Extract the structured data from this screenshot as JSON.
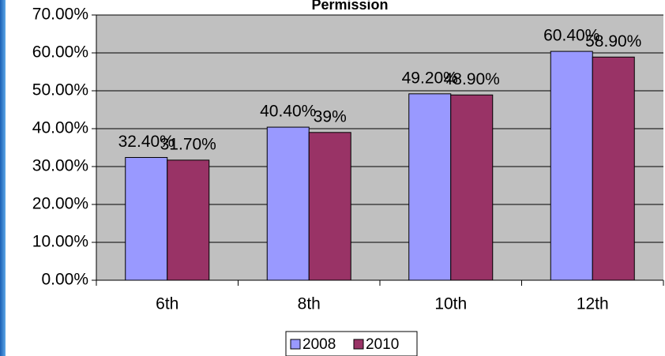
{
  "chart_data": {
    "type": "bar",
    "title": "Permission",
    "categories": [
      "6th",
      "8th",
      "10th",
      "12th"
    ],
    "series": [
      {
        "name": "2008",
        "color": "#9999ff",
        "values": [
          32.4,
          40.4,
          49.2,
          60.4
        ],
        "value_labels": [
          "32.40%",
          "40.40%",
          "49.20%",
          "60.40%"
        ]
      },
      {
        "name": "2010",
        "color": "#993366",
        "values": [
          31.7,
          39,
          48.9,
          58.9
        ],
        "value_labels": [
          "31.70%",
          "39%",
          "48.90%",
          "58.90%"
        ]
      }
    ],
    "ylim": [
      0,
      70
    ],
    "yticks": [
      {
        "value": 0,
        "label": "0.00%"
      },
      {
        "value": 10,
        "label": "10.00%"
      },
      {
        "value": 20,
        "label": "20.00%"
      },
      {
        "value": 30,
        "label": "30.00%"
      },
      {
        "value": 40,
        "label": "40.00%"
      },
      {
        "value": 50,
        "label": "50.00%"
      },
      {
        "value": 60,
        "label": "60.00%"
      },
      {
        "value": 70,
        "label": "70.00%"
      }
    ],
    "grid": true,
    "legend": "bottom"
  }
}
